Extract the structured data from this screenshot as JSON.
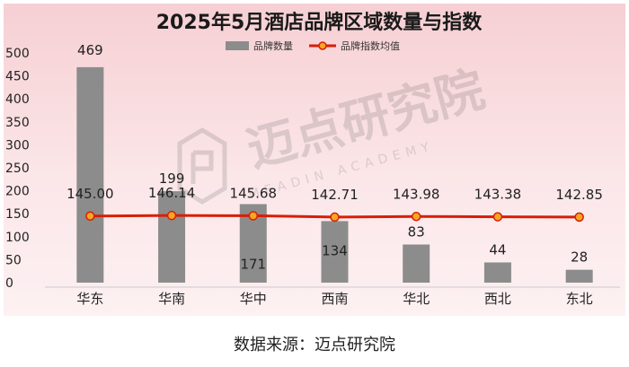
{
  "chart_data": {
    "type": "bar",
    "title": "2025年5月酒店品牌区域数量与指数",
    "categories": [
      "华东",
      "华南",
      "华中",
      "西南",
      "华北",
      "西北",
      "东北"
    ],
    "series": [
      {
        "name": "品牌数量",
        "type": "bar",
        "color": "#8c8c8c",
        "values": [
          469,
          199,
          171,
          134,
          83,
          44,
          28
        ],
        "labels": [
          "469",
          "199",
          "171",
          "134",
          "83",
          "44",
          "28"
        ]
      },
      {
        "name": "品牌指数均值",
        "type": "line",
        "color": "#d81e06",
        "marker_color": "#f5a623",
        "values": [
          145.0,
          146.14,
          145.68,
          142.71,
          143.98,
          143.38,
          142.85
        ],
        "labels": [
          "145.00",
          "146.14",
          "145.68",
          "142.71",
          "143.98",
          "143.38",
          "142.85"
        ]
      }
    ],
    "y_ticks": [
      "0",
      "50",
      "100",
      "150",
      "200",
      "250",
      "300",
      "350",
      "400",
      "450",
      "500"
    ],
    "ylim": [
      0,
      500
    ],
    "grid": false,
    "legend": "top-center"
  },
  "watermark": {
    "text_cn": "迈点研究院",
    "text_en": "MEADIN ACADEMY"
  },
  "source_note": "数据来源：迈点研究院"
}
